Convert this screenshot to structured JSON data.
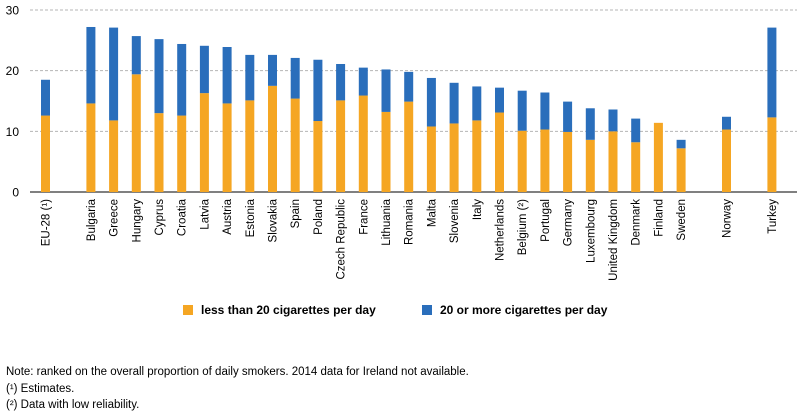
{
  "chart_data": {
    "type": "bar",
    "stacked": true,
    "categories": [
      "EU-28 (¹)",
      "Bulgaria",
      "Greece",
      "Hungary",
      "Cyprus",
      "Croatia",
      "Latvia",
      "Austria",
      "Estonia",
      "Slovakia",
      "Spain",
      "Poland",
      "Czech Republic",
      "France",
      "Lithuania",
      "Romania",
      "Malta",
      "Slovenia",
      "Italy",
      "Netherlands",
      "Belgium (²)",
      "Portugal",
      "Germany",
      "Luxembourg",
      "United Kingdom",
      "Denmark",
      "Finland",
      "Sweden",
      "Norway",
      "Turkey"
    ],
    "series": [
      {
        "name": "less than 20 cigarettes per day",
        "color": "#f5a623",
        "values": [
          12.6,
          14.6,
          11.8,
          19.4,
          13.0,
          12.6,
          16.3,
          14.6,
          15.1,
          17.5,
          15.4,
          11.7,
          15.1,
          15.9,
          13.2,
          14.9,
          10.8,
          11.3,
          11.8,
          13.1,
          10.1,
          10.3,
          9.9,
          8.6,
          10.0,
          8.2,
          11.4,
          7.2,
          10.3,
          12.3
        ]
      },
      {
        "name": "20 or more cigarettes per day",
        "color": "#2a6ebb",
        "values": [
          5.9,
          12.6,
          15.3,
          6.3,
          12.2,
          11.8,
          7.8,
          9.3,
          7.5,
          5.1,
          6.7,
          10.1,
          6.0,
          4.6,
          7.0,
          4.9,
          8.0,
          6.7,
          5.6,
          4.1,
          6.6,
          6.1,
          5.0,
          5.2,
          3.6,
          3.9,
          0,
          1.4,
          2.1,
          14.8
        ]
      }
    ],
    "ylim": [
      0,
      30
    ],
    "yticks": [
      0,
      10,
      20,
      30
    ],
    "grid": true,
    "legend_position": "bottom"
  },
  "notes": [
    "Note: ranked on the overall proportion of daily smokers. 2014 data for Ireland not available.",
    "(¹) Estimates.",
    "(²) Data with low reliability."
  ]
}
